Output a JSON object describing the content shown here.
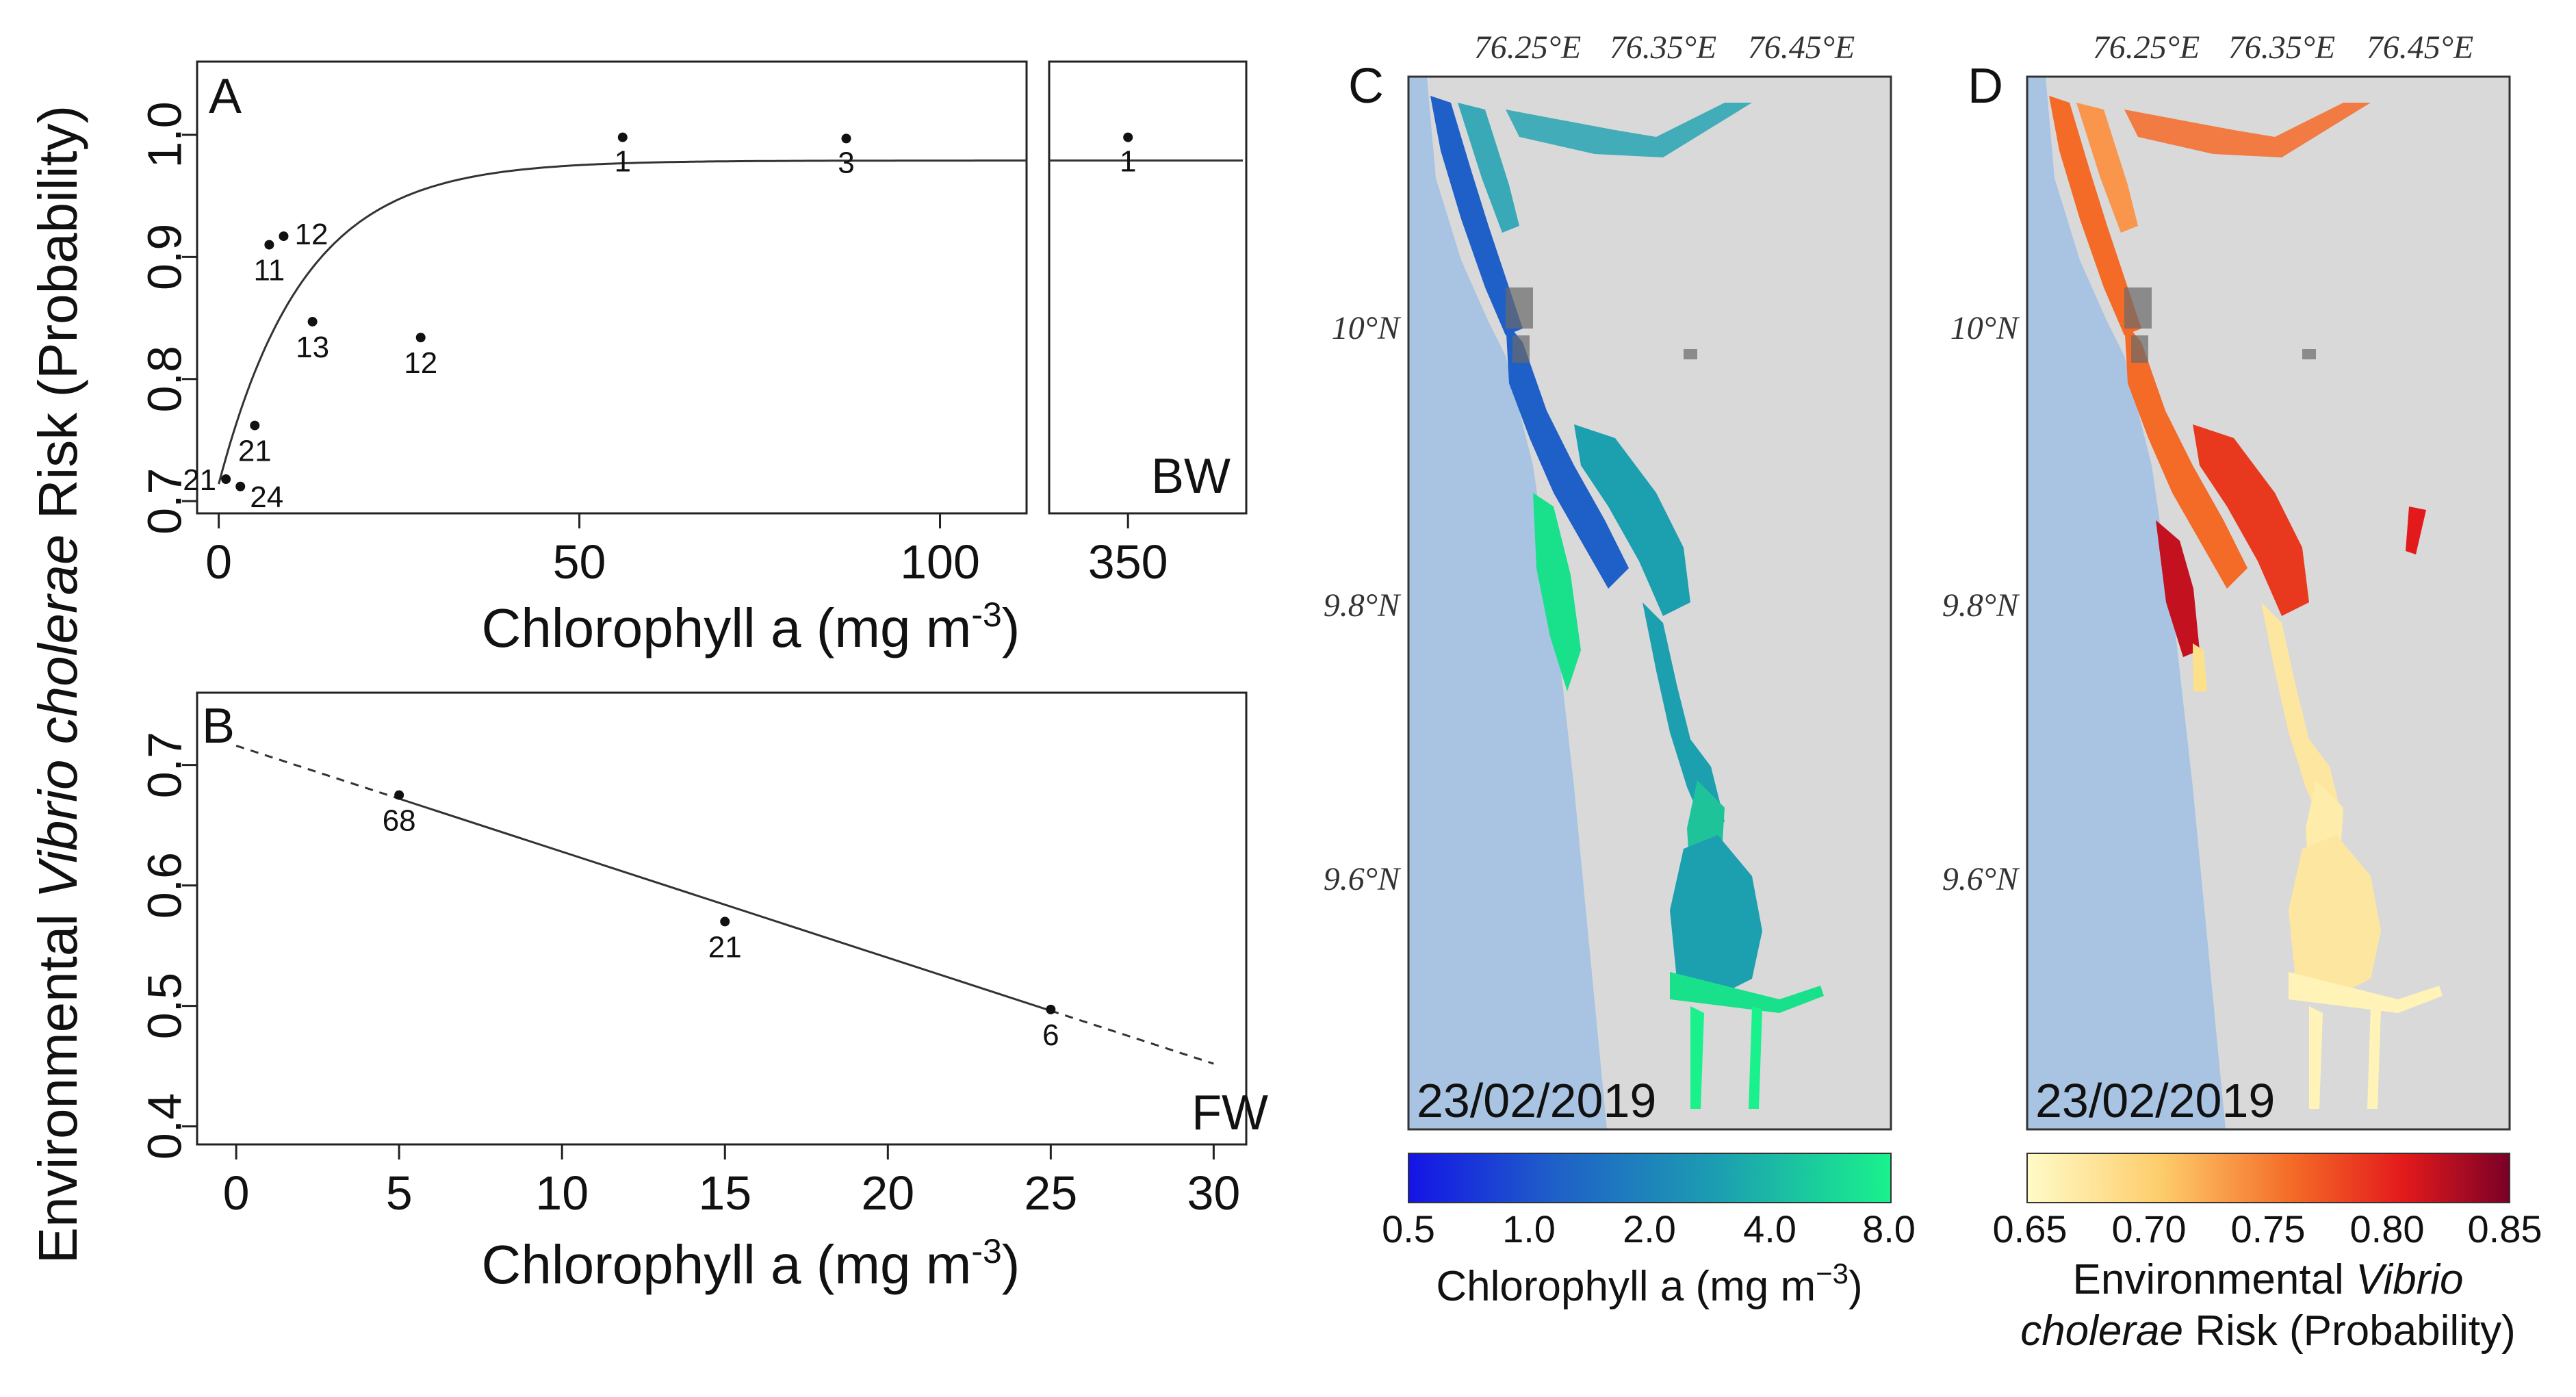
{
  "chart_data": [
    {
      "panel": "A",
      "type": "scatter",
      "regime": "BW",
      "xlabel": "Chlorophyll a (mg m",
      "xlabel_sup": "-3",
      "xlabel_close": ")",
      "ylabel_pre": "Environmental ",
      "ylabel_italic": "Vibrio cholerae",
      "ylabel_post": " Risk (Probability)",
      "xlim": [
        -3,
        112
      ],
      "xlim_break": [
        310,
        410
      ],
      "ylim": [
        0.69,
        1.06
      ],
      "xticks": [
        0,
        50,
        100
      ],
      "xticks_break": [
        350
      ],
      "yticks": [
        0.7,
        0.8,
        0.9,
        1.0
      ],
      "ytick_labels": [
        "0.7",
        "0.8",
        "0.9",
        "1.0"
      ],
      "points": [
        {
          "x": 1,
          "y": 0.718,
          "label": "21"
        },
        {
          "x": 3,
          "y": 0.712,
          "label": "24"
        },
        {
          "x": 5,
          "y": 0.762,
          "label": "21"
        },
        {
          "x": 7,
          "y": 0.91,
          "label": "11"
        },
        {
          "x": 9,
          "y": 0.917,
          "label": "12"
        },
        {
          "x": 13,
          "y": 0.847,
          "label": "13"
        },
        {
          "x": 28,
          "y": 0.834,
          "label": "12"
        },
        {
          "x": 56,
          "y": 0.998,
          "label": "1"
        },
        {
          "x": 87,
          "y": 0.997,
          "label": "3"
        }
      ],
      "points_break": [
        {
          "x": 350,
          "y": 0.998,
          "label": "1"
        }
      ],
      "curve": {
        "model": "saturating",
        "y0": 0.714,
        "ymax": 0.979,
        "k": 0.085
      }
    },
    {
      "panel": "B",
      "type": "scatter",
      "regime": "FW",
      "xlabel": "Chlorophyll a (mg m",
      "xlabel_sup": "-3",
      "xlabel_close": ")",
      "xlim": [
        -1.2,
        31
      ],
      "ylim": [
        0.385,
        0.76
      ],
      "xticks": [
        0,
        5,
        10,
        15,
        20,
        25,
        30
      ],
      "yticks": [
        0.4,
        0.5,
        0.6,
        0.7
      ],
      "ytick_labels": [
        "0.4",
        "0.5",
        "0.6",
        "0.7"
      ],
      "points": [
        {
          "x": 5,
          "y": 0.675,
          "label": "68"
        },
        {
          "x": 15,
          "y": 0.57,
          "label": "21"
        },
        {
          "x": 25,
          "y": 0.497,
          "label": "6"
        }
      ],
      "fit": {
        "intercept": 0.716,
        "slope": -0.0088,
        "solid_range": [
          5,
          25
        ],
        "dashed_range": [
          0,
          30
        ]
      }
    }
  ],
  "maps": {
    "lon_labels": [
      "76.25°E",
      "76.35°E",
      "76.45°E"
    ],
    "lat_labels": [
      "10°N",
      "9.8°N",
      "9.6°N"
    ],
    "panel_c": {
      "letter": "C",
      "date": "23/02/2019",
      "colorbar_ticks": [
        "0.5",
        "1.0",
        "2.0",
        "4.0",
        "8.0"
      ],
      "colorbar_title": "Chlorophyll a (mg m",
      "colorbar_title_sup": "−3",
      "colorbar_title_close": ")",
      "colors": {
        "low": "#1414e6",
        "mid1": "#1f5fc8",
        "mid2": "#1ca0b0",
        "high": "#19f28c"
      }
    },
    "panel_d": {
      "letter": "D",
      "date": "23/02/2019",
      "colorbar_ticks": [
        "0.65",
        "0.70",
        "0.75",
        "0.80",
        "0.85"
      ],
      "colorbar_title_line1_pre": "Environmental ",
      "colorbar_title_line1_italic": "Vibrio",
      "colorbar_title_line2_italic": "cholerae",
      "colorbar_title_line2_post": " Risk (Probability)",
      "colors": {
        "low": "#fffbc8",
        "mid1": "#fdcc6a",
        "mid2": "#f46a27",
        "high": "#e31a1c",
        "max": "#7a0026"
      }
    },
    "colors": {
      "sea": "#a8c4e2",
      "land": "#d9d9d9",
      "frame": "#333333"
    }
  }
}
